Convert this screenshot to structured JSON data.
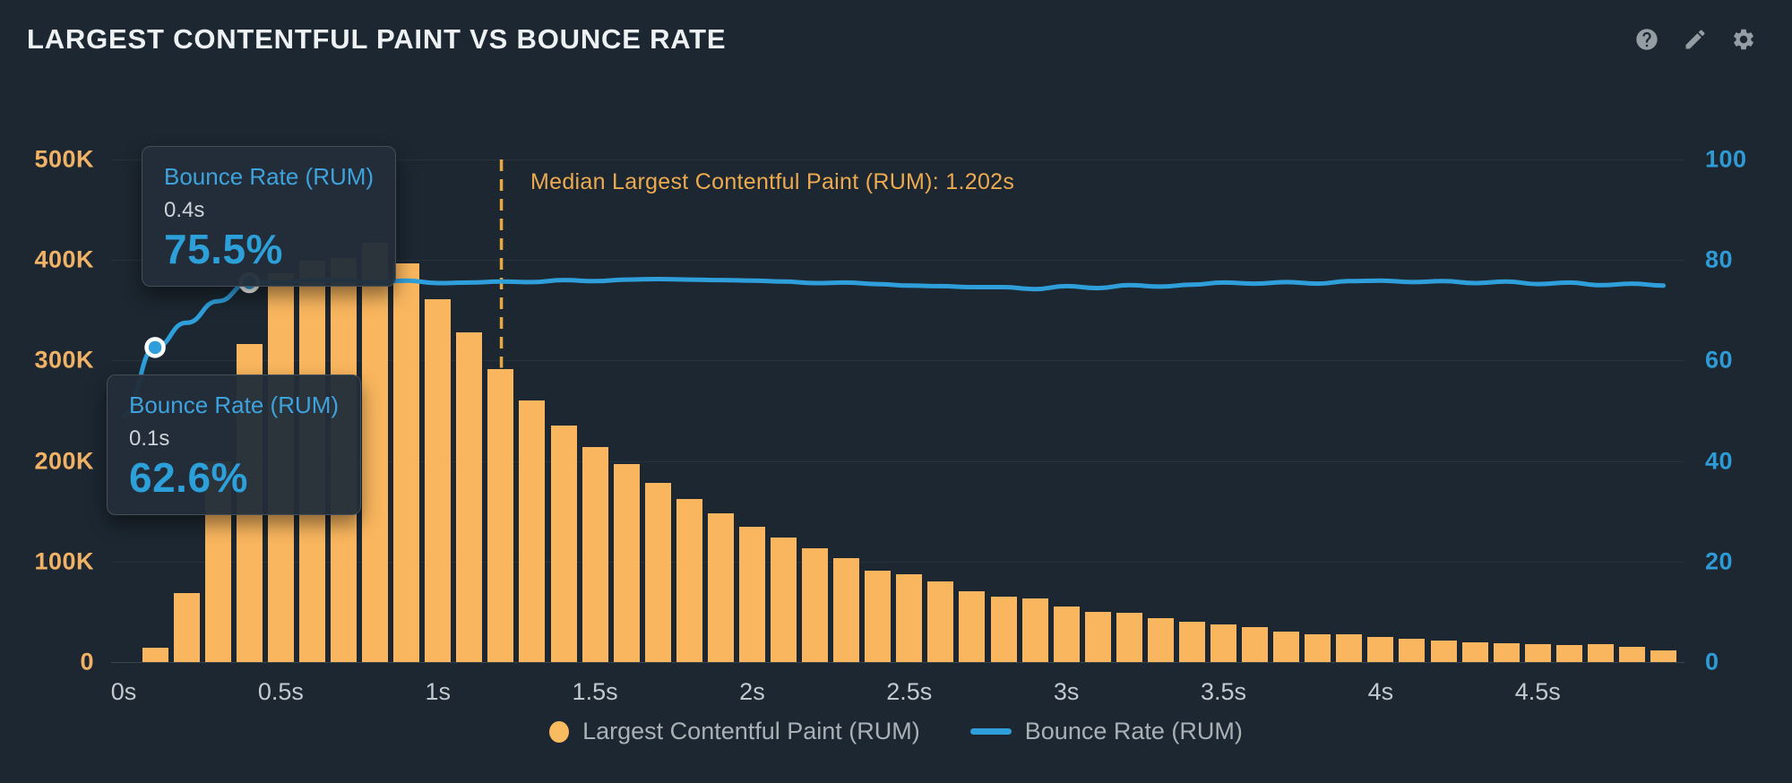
{
  "header": {
    "title": "LARGEST CONTENTFUL PAINT VS BOUNCE RATE",
    "icons": [
      "help",
      "edit",
      "settings"
    ]
  },
  "annotation": {
    "median_label": "Median Largest Contentful Paint (RUM): 1.202s",
    "median_seconds": 1.202
  },
  "tooltips": [
    {
      "series": "Bounce Rate (RUM)",
      "x_value": "0.4s",
      "value": "75.5%"
    },
    {
      "series": "Bounce Rate (RUM)",
      "x_value": "0.1s",
      "value": "62.6%"
    }
  ],
  "legend": {
    "items": [
      {
        "label": "Largest Contentful Paint (RUM)",
        "marker": "circle",
        "color": "#f9bb60"
      },
      {
        "label": "Bounce Rate (RUM)",
        "marker": "line",
        "color": "#2f9fdb"
      }
    ]
  },
  "colors": {
    "background": "#1c2731",
    "bar": "#f9b65e",
    "line": "#2f9fdb",
    "median": "#e7a845",
    "axis_left_text": "#f2b266",
    "axis_right_text": "#2e9bd6",
    "axis_x_text": "#c3c9ce",
    "gridline": "rgba(255,255,255,0.05)"
  },
  "chart_data": {
    "type": "bar",
    "title": "Largest Contentful Paint vs Bounce Rate",
    "x_unit": "seconds",
    "bin_width": 0.1,
    "median": 1.202,
    "y_left": {
      "max": 500000,
      "ticks": [
        {
          "label": "500K",
          "value": 500000
        },
        {
          "label": "400K",
          "value": 400000
        },
        {
          "label": "300K",
          "value": 300000
        },
        {
          "label": "200K",
          "value": 200000
        },
        {
          "label": "100K",
          "value": 100000
        },
        {
          "label": "0",
          "value": 0
        }
      ]
    },
    "y_right": {
      "max": 100,
      "ticks": [
        {
          "label": "100",
          "value": 100
        },
        {
          "label": "80",
          "value": 80
        },
        {
          "label": "60",
          "value": 60
        },
        {
          "label": "40",
          "value": 40
        },
        {
          "label": "20",
          "value": 20
        },
        {
          "label": "0",
          "value": 0
        }
      ]
    },
    "x_ticks": [
      {
        "label": "0s",
        "value": 0
      },
      {
        "label": "0.5s",
        "value": 0.5
      },
      {
        "label": "1s",
        "value": 1
      },
      {
        "label": "1.5s",
        "value": 1.5
      },
      {
        "label": "2s",
        "value": 2
      },
      {
        "label": "2.5s",
        "value": 2.5
      },
      {
        "label": "3s",
        "value": 3
      },
      {
        "label": "3.5s",
        "value": 3.5
      },
      {
        "label": "4s",
        "value": 4
      },
      {
        "label": "4.5s",
        "value": 4.5
      }
    ],
    "series": [
      {
        "name": "Largest Contentful Paint (RUM)",
        "type": "bar",
        "axis": "left",
        "color": "#f9b65e",
        "x": [
          0.1,
          0.2,
          0.3,
          0.4,
          0.5,
          0.6,
          0.7,
          0.8,
          0.9,
          1.0,
          1.1,
          1.2,
          1.3,
          1.4,
          1.5,
          1.6,
          1.7,
          1.8,
          1.9,
          2.0,
          2.1,
          2.2,
          2.3,
          2.4,
          2.5,
          2.6,
          2.7,
          2.8,
          2.9,
          3.0,
          3.1,
          3.2,
          3.3,
          3.4,
          3.5,
          3.6,
          3.7,
          3.8,
          3.9,
          4.0,
          4.1,
          4.2,
          4.3,
          4.4,
          4.5,
          4.6,
          4.7,
          4.8,
          4.9
        ],
        "values": [
          14000,
          69000,
          200000,
          316000,
          387000,
          399000,
          402000,
          417000,
          397000,
          361000,
          328000,
          291000,
          260000,
          235000,
          214000,
          197000,
          178000,
          162000,
          148000,
          135000,
          124000,
          113000,
          103000,
          91000,
          87000,
          80000,
          70000,
          65000,
          63000,
          55000,
          50000,
          49000,
          44000,
          40000,
          37000,
          35000,
          30000,
          28000,
          28000,
          25000,
          23000,
          21000,
          20000,
          19000,
          18000,
          17000,
          18000,
          15000,
          12000
        ]
      },
      {
        "name": "Bounce Rate (RUM)",
        "type": "line",
        "axis": "right",
        "color": "#2f9fdb",
        "x": [
          0.0,
          0.1,
          0.2,
          0.3,
          0.4,
          0.5,
          0.6,
          0.7,
          0.8,
          0.9,
          1.0,
          1.1,
          1.2,
          1.3,
          1.4,
          1.5,
          1.6,
          1.7,
          1.8,
          1.9,
          2.0,
          2.1,
          2.2,
          2.3,
          2.4,
          2.5,
          2.6,
          2.7,
          2.8,
          2.9,
          3.0,
          3.1,
          3.2,
          3.3,
          3.4,
          3.5,
          3.6,
          3.7,
          3.8,
          3.9,
          4.0,
          4.1,
          4.2,
          4.3,
          4.4,
          4.5,
          4.6,
          4.7,
          4.8,
          4.9
        ],
        "values": [
          49.0,
          62.6,
          67.5,
          71.8,
          75.5,
          75.6,
          76.0,
          76.0,
          75.6,
          75.9,
          75.4,
          75.5,
          75.7,
          75.6,
          76.0,
          75.8,
          76.1,
          76.2,
          76.1,
          76.0,
          75.9,
          75.7,
          75.4,
          75.5,
          75.2,
          74.9,
          74.8,
          74.6,
          74.6,
          74.2,
          74.8,
          74.4,
          75.0,
          74.7,
          75.1,
          75.5,
          75.3,
          75.6,
          75.3,
          75.8,
          75.9,
          75.6,
          75.8,
          75.4,
          75.7,
          75.2,
          75.5,
          75.0,
          75.3,
          74.9
        ]
      }
    ],
    "highlighted_points": [
      {
        "series": "Bounce Rate (RUM)",
        "x": 0.1,
        "y": 62.6
      },
      {
        "series": "Bounce Rate (RUM)",
        "x": 0.4,
        "y": 75.5
      }
    ],
    "legend_position": "bottom",
    "grid": "horizontal-only"
  }
}
